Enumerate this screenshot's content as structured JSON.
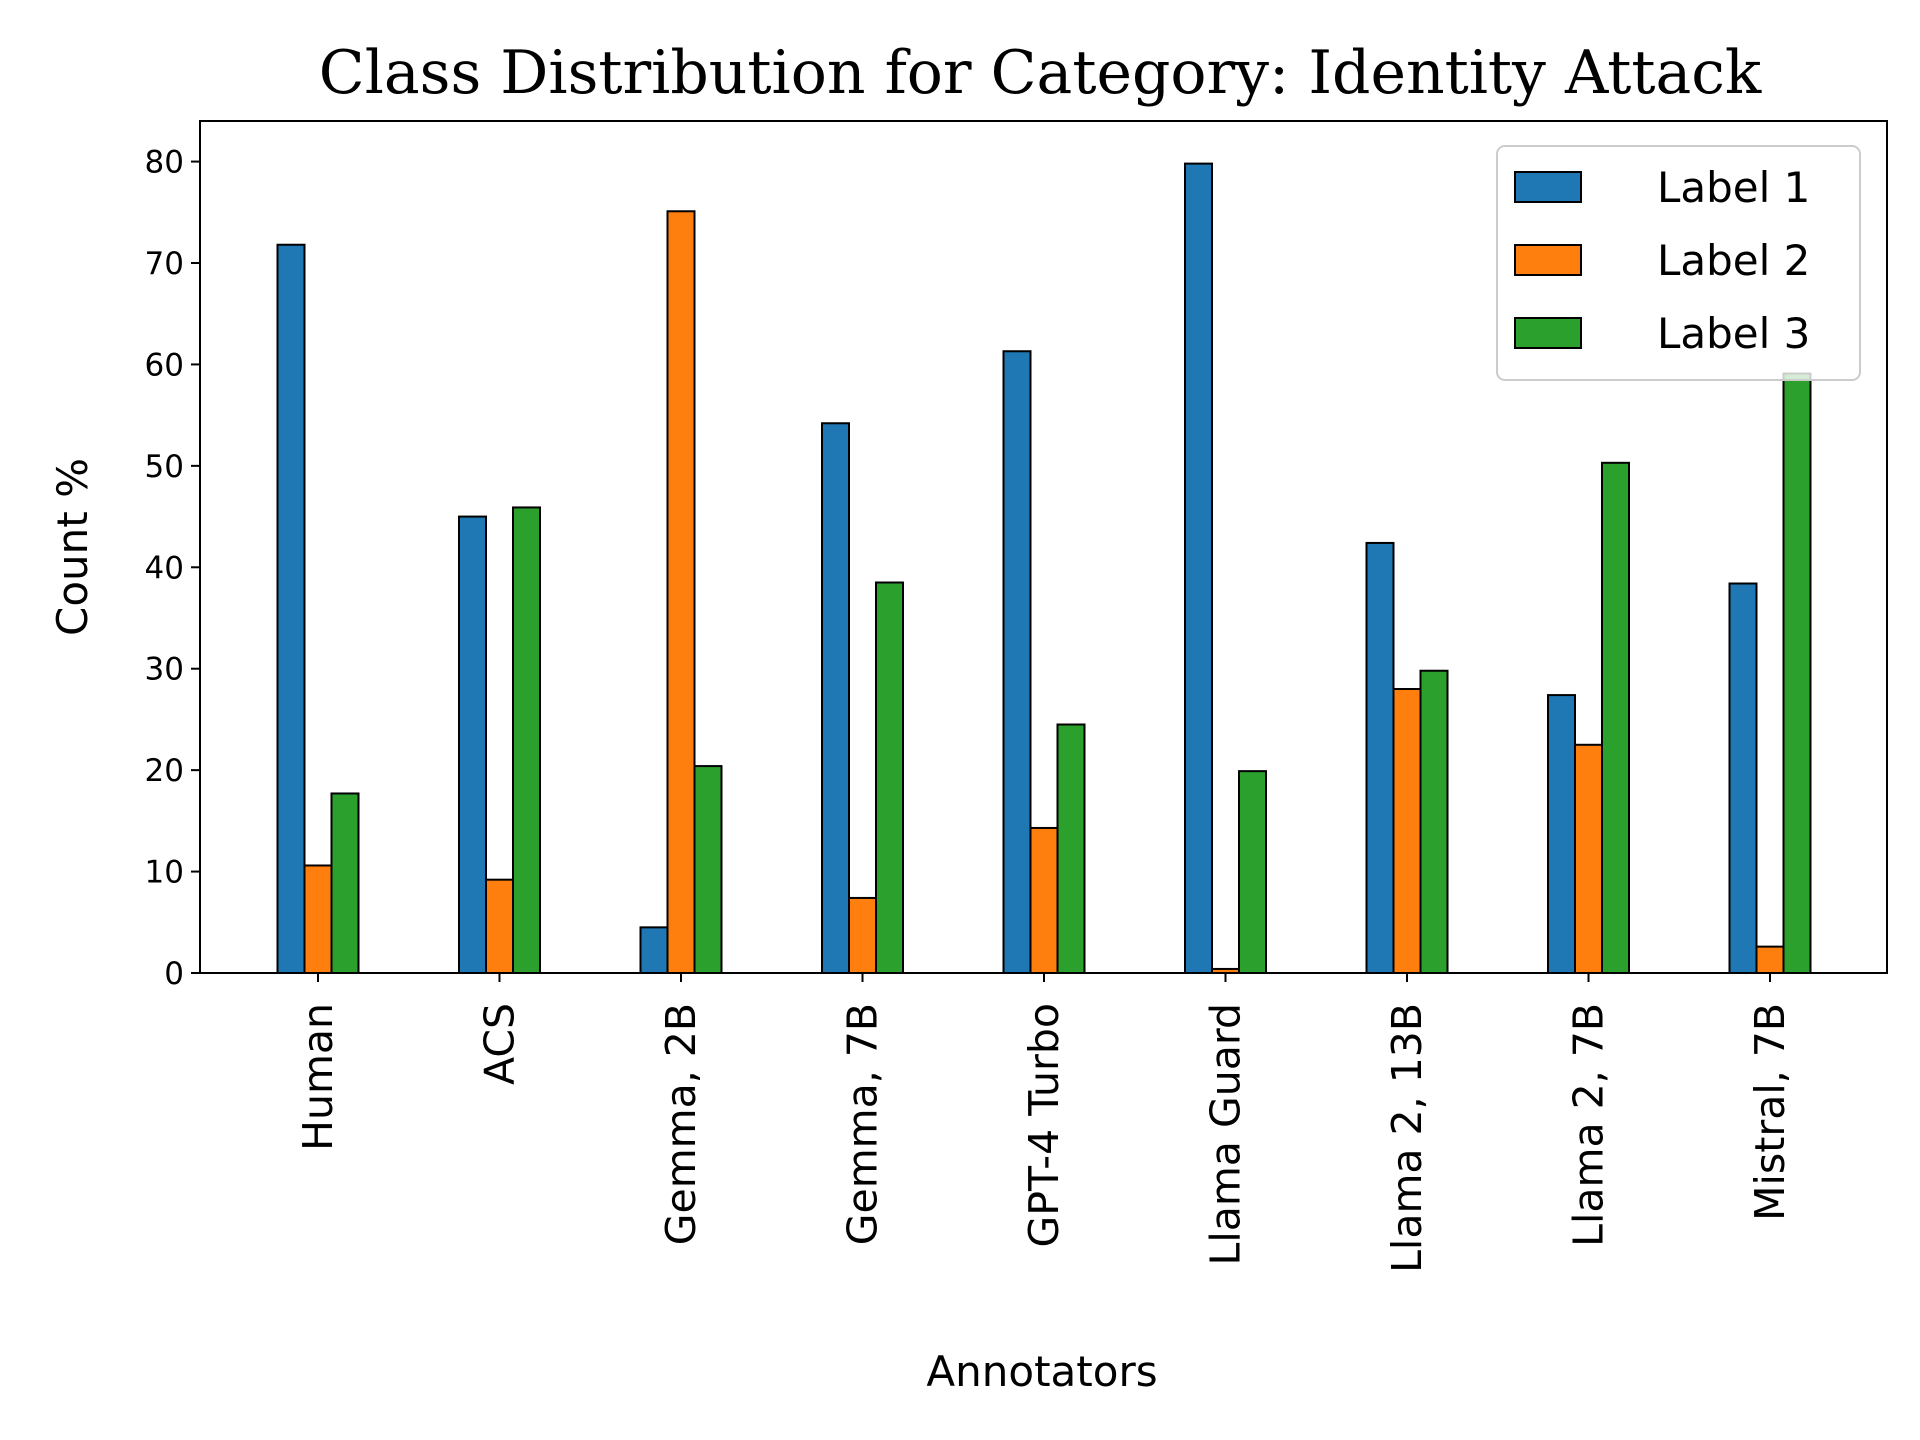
{
  "chart_data": {
    "type": "bar",
    "title": "Class Distribution for Category: Identity Attack",
    "xlabel": "Annotators",
    "ylabel": "Count %",
    "ylim": [
      0,
      84
    ],
    "yticks": [
      0,
      10,
      20,
      30,
      40,
      50,
      60,
      70,
      80
    ],
    "grid": false,
    "legend_position": "top-right",
    "categories": [
      "Human",
      "ACS",
      "Gemma, 2B",
      "Gemma, 7B",
      "GPT-4 Turbo",
      "Llama Guard",
      "Llama 2, 13B",
      "Llama 2, 7B",
      "Mistral, 7B"
    ],
    "series": [
      {
        "name": "Label 1",
        "color": "#1f77b4",
        "values": [
          71.8,
          45.0,
          4.5,
          54.2,
          61.3,
          79.8,
          42.4,
          27.4,
          38.4
        ]
      },
      {
        "name": "Label 2",
        "color": "#ff7f0e",
        "values": [
          10.6,
          9.2,
          75.1,
          7.4,
          14.3,
          0.4,
          28.0,
          22.5,
          2.6
        ]
      },
      {
        "name": "Label 3",
        "color": "#2ca02c",
        "values": [
          17.7,
          45.9,
          20.4,
          38.5,
          24.5,
          19.9,
          29.8,
          50.3,
          59.1
        ]
      }
    ]
  }
}
